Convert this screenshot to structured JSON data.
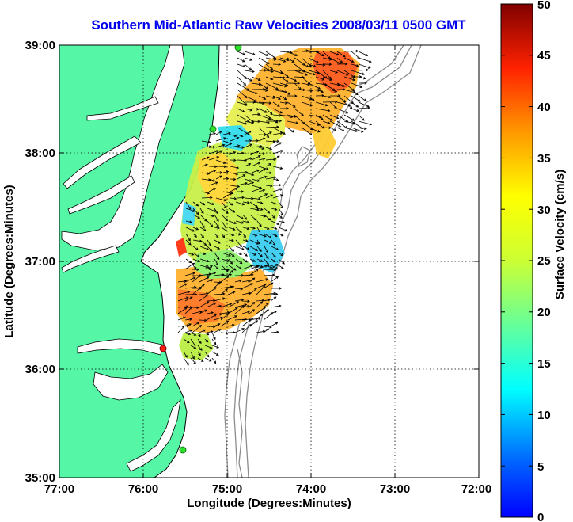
{
  "title": "Southern Mid-Atlantic Raw Velocities 2008/03/11 0500 GMT",
  "xlabel": "Longitude (Degrees:Minutes)",
  "ylabel": "Latitude (Degrees:Minutes)",
  "colorbar_label": "Surface Velocity (cm/s)",
  "x_ticks": [
    "77:00",
    "76:00",
    "75:00",
    "74:00",
    "73:00",
    "72:00"
  ],
  "y_ticks": [
    "39:00",
    "38:00",
    "37:00",
    "36:00",
    "35:00"
  ],
  "colorbar_ticks": [
    "50",
    "45",
    "40",
    "35",
    "30",
    "25",
    "20",
    "15",
    "10",
    "5",
    "0"
  ],
  "colors": {
    "land": "#55f7a6",
    "coast": "#000000",
    "bathymetry": "#8c8c8c",
    "title": "#0000ee",
    "station_green": "#2ee02e",
    "station_red": "#ff1a1a"
  },
  "stations": [
    {
      "color": "green",
      "lon": -75.1,
      "lat": 39.0
    },
    {
      "color": "green",
      "lon": -75.08,
      "lat": 38.22
    },
    {
      "color": "red",
      "lon": -75.72,
      "lat": 36.18
    },
    {
      "color": "green",
      "lon": -75.48,
      "lat": 35.23
    }
  ],
  "chart_data": {
    "type": "heatmap",
    "description_units": "cm/s",
    "xlim": [
      -77,
      -72
    ],
    "ylim": [
      35,
      39
    ],
    "clim": [
      0,
      50
    ],
    "colormap": "jet",
    "grid": true
  }
}
